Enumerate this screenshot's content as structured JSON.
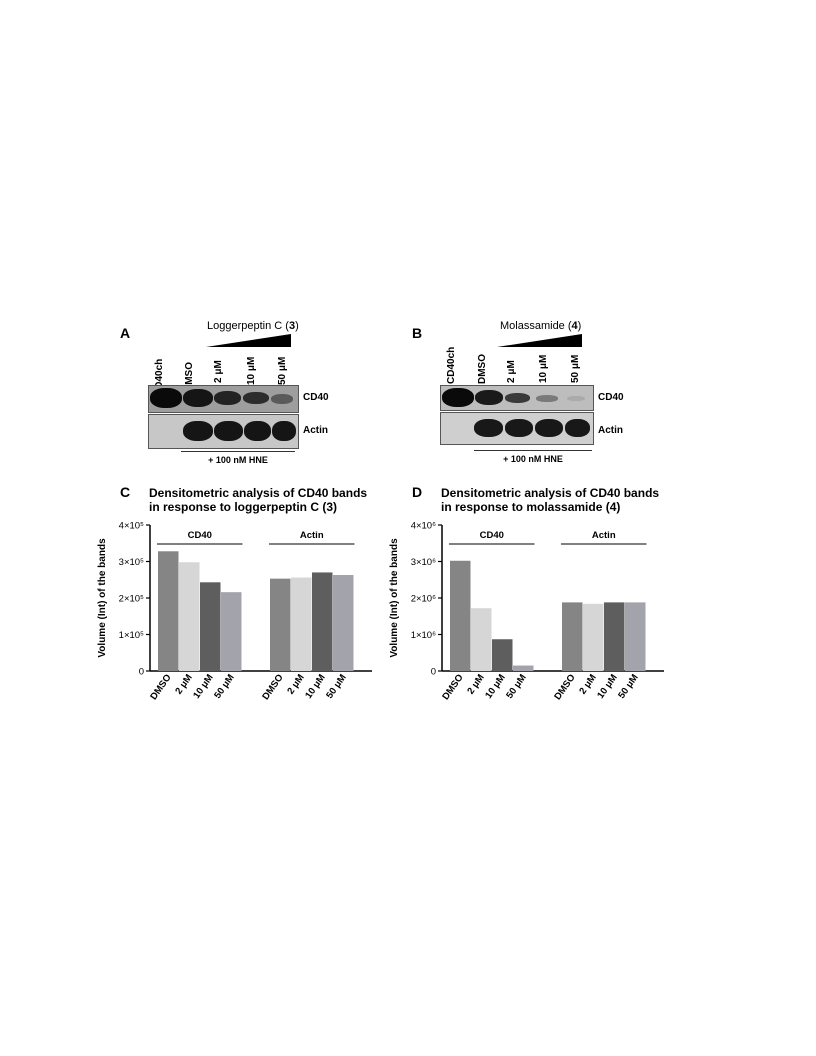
{
  "panel_a": {
    "letter": "A",
    "compound": "Loggerpeptin C (",
    "compound_num": "3",
    "compound_close": ")",
    "lanes": [
      "CD40ch",
      "DMSO",
      "2 μM",
      "10 μM",
      "50 μM"
    ],
    "row_labels": [
      "CD40",
      "Actin"
    ],
    "treatment": "+ 100 nM HNE"
  },
  "panel_b": {
    "letter": "B",
    "compound": "Molassamide (",
    "compound_num": "4",
    "compound_close": ")",
    "lanes": [
      "CD40ch",
      "DMSO",
      "2 μM",
      "10 μM",
      "50 μM"
    ],
    "row_labels": [
      "CD40",
      "Actin"
    ],
    "treatment": "+ 100 nM HNE"
  },
  "chart_data": [
    {
      "panel": "C",
      "type": "bar",
      "title_line1": "Densitometric analysis of CD40 bands",
      "title_line2": "in response to loggerpeptin C (3)",
      "ylabel": "Volume (Int) of the bands",
      "yticks": [
        "0",
        "1×10⁵",
        "2×10⁵",
        "3×10⁵",
        "4×10⁵"
      ],
      "ylim": [
        0,
        400000
      ],
      "groups": [
        {
          "name": "CD40",
          "categories": [
            "DMSO",
            "2 μM",
            "10 μM",
            "50 μM"
          ],
          "values": [
            328000,
            298000,
            243000,
            216000
          ]
        },
        {
          "name": "Actin",
          "categories": [
            "DMSO",
            "2 μM",
            "10 μM",
            "50 μM"
          ],
          "values": [
            253000,
            256000,
            270000,
            263000
          ]
        }
      ],
      "colors": [
        "#858585",
        "#d6d6d6",
        "#5e5e5e",
        "#a3a4ab"
      ]
    },
    {
      "panel": "D",
      "type": "bar",
      "title_line1": "Densitometric analysis of CD40 bands",
      "title_line2": "in response to molassamide (4)",
      "ylabel": "Volume (Int) of the bands",
      "yticks": [
        "0",
        "1×10⁶",
        "2×10⁶",
        "3×10⁶",
        "4×10⁶"
      ],
      "ylim": [
        0,
        4000000
      ],
      "groups": [
        {
          "name": "CD40",
          "categories": [
            "DMSO",
            "2 μM",
            "10 μM",
            "50 μM"
          ],
          "values": [
            3020000,
            1720000,
            870000,
            150000
          ]
        },
        {
          "name": "Actin",
          "categories": [
            "DMSO",
            "2 μM",
            "10 μM",
            "50 μM"
          ],
          "values": [
            1880000,
            1840000,
            1880000,
            1880000
          ]
        }
      ],
      "colors": [
        "#858585",
        "#d6d6d6",
        "#5e5e5e",
        "#a3a4ab"
      ]
    }
  ]
}
